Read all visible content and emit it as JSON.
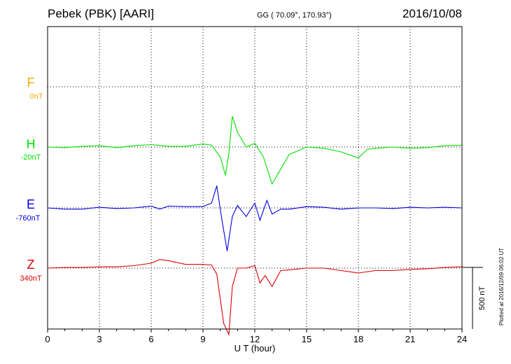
{
  "header": {
    "station": "Pebek (PBK)  [AARI]",
    "coords": "GG ( 70.09°, 170.93°)",
    "date": "2016/10/08",
    "plotted": "Plotted at 2016/12/09 06:02 UT"
  },
  "scale_label": "500 nT",
  "colors": {
    "F": "#ffa500",
    "H": "#00e000",
    "E": "#0000dd",
    "Z": "#dd0000"
  },
  "chart_data": {
    "type": "line",
    "xlabel": "U T (hour)",
    "xlim": [
      0,
      24
    ],
    "xticks": [
      "0",
      "3",
      "6",
      "9",
      "12",
      "15",
      "18",
      "21",
      "24"
    ],
    "scale_bar_nT": 500,
    "grid": true,
    "channels": [
      {
        "name": "F",
        "offset": "0nT",
        "baseline_nT": 0,
        "points": []
      },
      {
        "name": "H",
        "offset": "-20nT",
        "baseline_nT": -20,
        "points": [
          [
            0,
            0
          ],
          [
            1,
            -5
          ],
          [
            2,
            5
          ],
          [
            3,
            10
          ],
          [
            4,
            -5
          ],
          [
            5,
            10
          ],
          [
            6,
            20
          ],
          [
            7,
            5
          ],
          [
            8,
            5
          ],
          [
            9,
            25
          ],
          [
            9.5,
            15
          ],
          [
            10,
            -80
          ],
          [
            10.3,
            -230
          ],
          [
            10.5,
            -50
          ],
          [
            10.7,
            250
          ],
          [
            11,
            120
          ],
          [
            11.5,
            0
          ],
          [
            12,
            30
          ],
          [
            12.5,
            -80
          ],
          [
            13,
            -300
          ],
          [
            13.5,
            -180
          ],
          [
            14,
            -60
          ],
          [
            15,
            0
          ],
          [
            16,
            -10
          ],
          [
            17,
            -40
          ],
          [
            18,
            -90
          ],
          [
            18.5,
            -20
          ],
          [
            19,
            -10
          ],
          [
            20,
            0
          ],
          [
            21,
            -10
          ],
          [
            22,
            -5
          ],
          [
            23,
            10
          ],
          [
            24,
            15
          ]
        ]
      },
      {
        "name": "E",
        "offset": "-760nT",
        "baseline_nT": -760,
        "points": [
          [
            0,
            0
          ],
          [
            1,
            -10
          ],
          [
            2,
            -10
          ],
          [
            3,
            5
          ],
          [
            4,
            -5
          ],
          [
            5,
            0
          ],
          [
            6,
            15
          ],
          [
            6.5,
            -10
          ],
          [
            7,
            15
          ],
          [
            8,
            10
          ],
          [
            9,
            10
          ],
          [
            9.5,
            40
          ],
          [
            9.8,
            180
          ],
          [
            10.1,
            -100
          ],
          [
            10.4,
            -350
          ],
          [
            10.7,
            -70
          ],
          [
            11,
            20
          ],
          [
            11.5,
            -70
          ],
          [
            12,
            40
          ],
          [
            12.3,
            -100
          ],
          [
            12.7,
            60
          ],
          [
            13,
            -50
          ],
          [
            13.5,
            -10
          ],
          [
            14,
            -10
          ],
          [
            15,
            10
          ],
          [
            16,
            5
          ],
          [
            17,
            -10
          ],
          [
            18,
            0
          ],
          [
            19,
            0
          ],
          [
            20,
            -5
          ],
          [
            21,
            5
          ],
          [
            22,
            0
          ],
          [
            23,
            5
          ],
          [
            24,
            0
          ]
        ]
      },
      {
        "name": "Z",
        "offset": "340nT",
        "baseline_nT": 340,
        "points": [
          [
            0,
            0
          ],
          [
            1,
            5
          ],
          [
            2,
            5
          ],
          [
            3,
            10
          ],
          [
            4,
            10
          ],
          [
            5,
            20
          ],
          [
            6,
            40
          ],
          [
            6.5,
            70
          ],
          [
            7,
            60
          ],
          [
            8,
            30
          ],
          [
            9,
            30
          ],
          [
            9.5,
            25
          ],
          [
            9.8,
            -50
          ],
          [
            10.2,
            -450
          ],
          [
            10.5,
            -540
          ],
          [
            10.7,
            -150
          ],
          [
            11,
            0
          ],
          [
            11.5,
            0
          ],
          [
            12,
            20
          ],
          [
            12.3,
            -120
          ],
          [
            12.6,
            -60
          ],
          [
            13,
            -150
          ],
          [
            13.5,
            -20
          ],
          [
            14,
            -15
          ],
          [
            15,
            0
          ],
          [
            16,
            0
          ],
          [
            17,
            -20
          ],
          [
            18,
            -40
          ],
          [
            19,
            -20
          ],
          [
            20,
            -20
          ],
          [
            21,
            -10
          ],
          [
            22,
            -5
          ],
          [
            23,
            5
          ],
          [
            24,
            10
          ]
        ]
      }
    ]
  }
}
